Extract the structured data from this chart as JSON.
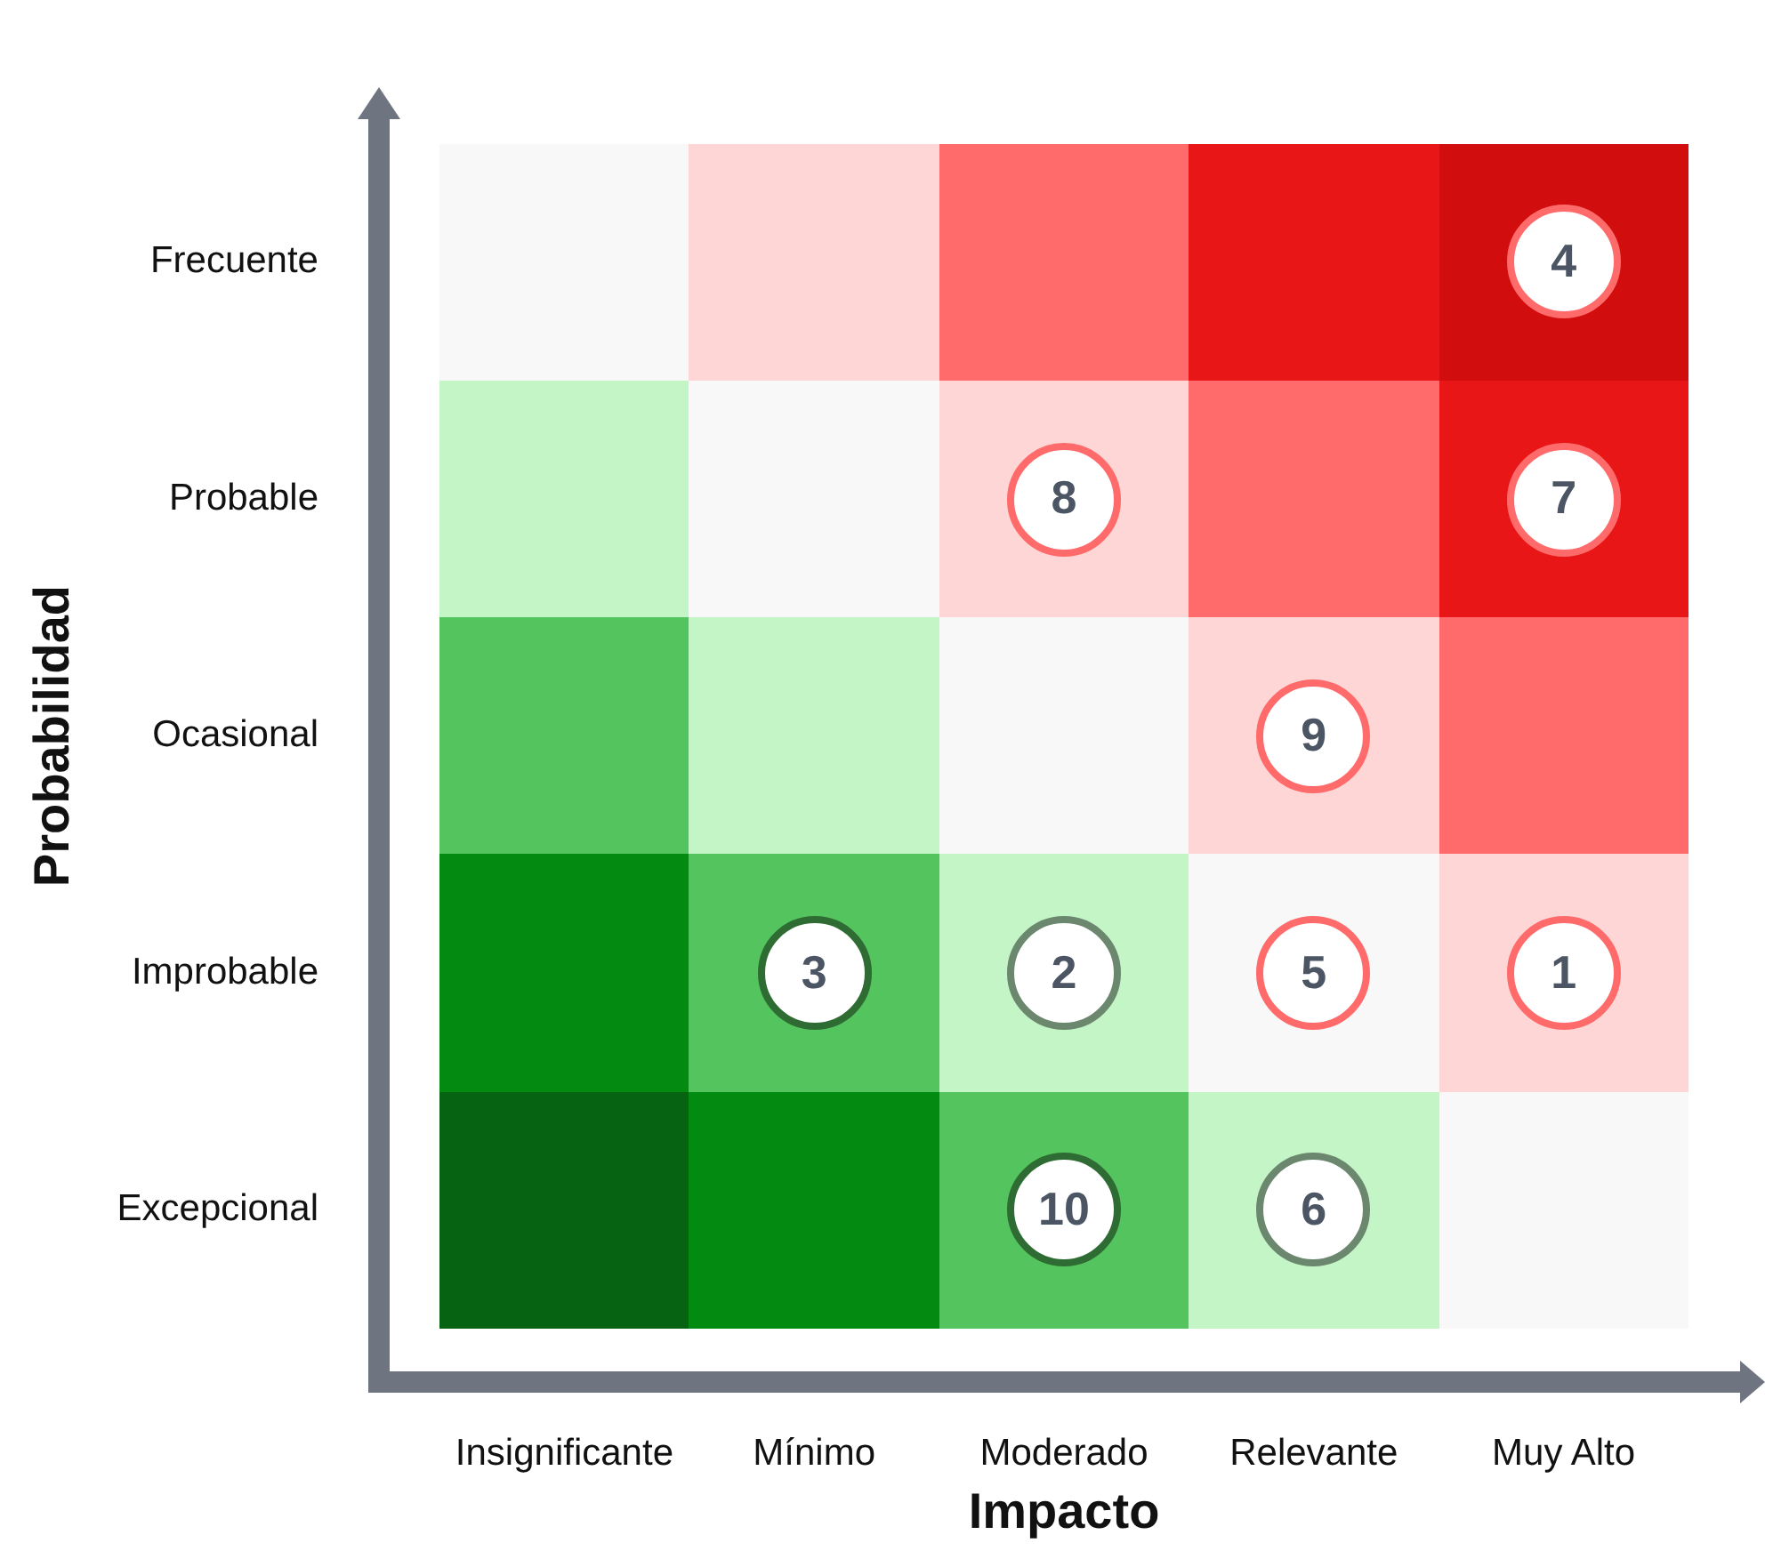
{
  "chart_data": {
    "type": "heatmap",
    "xlabel": "Impacto",
    "ylabel": "Probabilidad",
    "data_labels": true,
    "categories": [
      "Insignificante",
      "Mínimo",
      "Moderado",
      "Relevante",
      "Muy Alto"
    ],
    "y_categories": [
      "Frecuente",
      "Probable",
      "Ocasional",
      "Improbable",
      "Excepcional"
    ],
    "cells": [
      [
        null,
        null,
        null,
        null,
        4
      ],
      [
        null,
        null,
        8,
        null,
        7
      ],
      [
        null,
        null,
        null,
        9,
        null
      ],
      [
        null,
        3,
        2,
        5,
        1
      ],
      [
        null,
        null,
        10,
        6,
        null
      ]
    ],
    "colors": [
      [
        "#f8f8f8",
        "#ffd6d6",
        "#ff6b6b",
        "#e81616",
        "#d10d0d"
      ],
      [
        "#c3f5c6",
        "#f8f8f8",
        "#ffd6d6",
        "#ff6b6b",
        "#e81616"
      ],
      [
        "#54c45e",
        "#c3f5c6",
        "#f8f8f8",
        "#ffd6d6",
        "#ff6b6b"
      ],
      [
        "#038a10",
        "#54c45e",
        "#c3f5c6",
        "#f8f8f8",
        "#ffd6d6"
      ],
      [
        "#056312",
        "#038a10",
        "#54c45e",
        "#c3f5c6",
        "#f8f8f8"
      ]
    ]
  }
}
